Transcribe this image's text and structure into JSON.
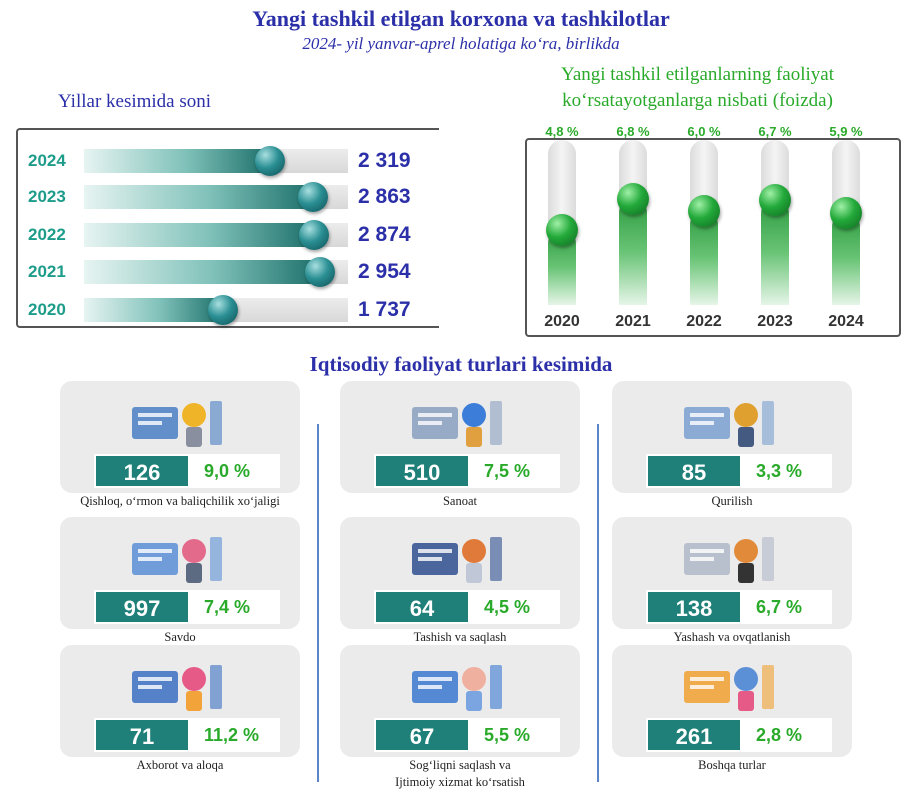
{
  "header": {
    "title": "Yangi tashkil etilgan korxona va tashkilotlar",
    "subtitle": "2024- yil yanvar-aprel holatiga ko‘ra, birlikda"
  },
  "chart_data": [
    {
      "type": "bar",
      "orientation": "horizontal",
      "title": "Yillar kesimida soni",
      "categories": [
        "2024",
        "2023",
        "2022",
        "2021",
        "2020"
      ],
      "values": [
        2319,
        2863,
        2874,
        2954,
        1737
      ],
      "value_labels": [
        "2 319",
        "2 863",
        "2 874",
        "2 954",
        "1 737"
      ],
      "max": 3300
    },
    {
      "type": "bar",
      "orientation": "vertical",
      "title_lines": [
        "Yangi tashkil etilganlarning faoliyat",
        "ko‘rsatayotganlarga nisbati (foizda)"
      ],
      "categories": [
        "2020",
        "2021",
        "2022",
        "2023",
        "2024"
      ],
      "values": [
        4.8,
        6.8,
        6.0,
        6.7,
        5.9
      ],
      "value_labels": [
        "4,8 %",
        "6,8 %",
        "6,0 %",
        "6,7 %",
        "5,9 %"
      ],
      "ylim": [
        0,
        9.5
      ]
    }
  ],
  "sectors": {
    "title": "Iqtisodiy faoliyat turlari kesimida",
    "items": [
      {
        "count": "126",
        "percent": "9,0 %",
        "label": "Qishloq, o‘rmon va baliqchilik xo‘jaligi"
      },
      {
        "count": "997",
        "percent": "7,4 %",
        "label": "Savdo"
      },
      {
        "count": "71",
        "percent": "11,2 %",
        "label": "Axborot va aloqa"
      },
      {
        "count": "510",
        "percent": "7,5 %",
        "label": "Sanoat"
      },
      {
        "count": "64",
        "percent": "4,5 %",
        "label": "Tashish va saqlash"
      },
      {
        "count": "67",
        "percent": "5,5 %",
        "label": "Sog‘liqni saqlash va",
        "label2": "Ijtimoiy xizmat ko‘rsatish"
      },
      {
        "count": "85",
        "percent": "3,3 %",
        "label": "Qurilish"
      },
      {
        "count": "138",
        "percent": "6,7 %",
        "label": "Yashash va ovqatlanish"
      },
      {
        "count": "261",
        "percent": "2,8 %",
        "label": "Boshqa turlar"
      }
    ]
  },
  "colors": {
    "title": "#2b2fa8",
    "accent_green": "#2aaa2a",
    "teal": "#1e8078",
    "year_teal": "#1e9c8a"
  }
}
